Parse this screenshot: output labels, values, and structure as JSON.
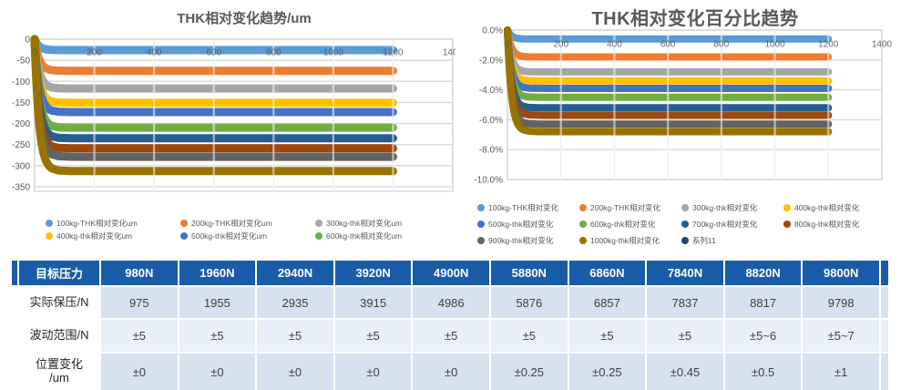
{
  "colors": {
    "title_text": "#595959",
    "tick_text": "#595959",
    "gridline": "#D9D9D9",
    "table_header_bg": "#1A5CA8",
    "table_header_text": "#FFFFFF",
    "table_row_bg_odd": "#D6E2F0",
    "table_row_bg_even": "#EAF0F8"
  },
  "chart_data": [
    {
      "type": "scatter",
      "title": "THK相对变化趋势/um",
      "xlabel": "",
      "ylabel": "",
      "xlim": [
        0,
        1400
      ],
      "ylim": [
        -361,
        0
      ],
      "x_ticks": [
        0,
        200,
        400,
        600,
        800,
        1000,
        1200,
        1400
      ],
      "x_tick_labels": [
        "0",
        "200",
        "400",
        "600",
        "800",
        "1000",
        "1200",
        "1400"
      ],
      "y_ticks": [
        0,
        -50,
        -100,
        -150,
        -200,
        -250,
        -300,
        -350
      ],
      "y_tick_labels": [
        "0",
        "-50",
        "-100",
        "-150",
        "-200",
        "-250",
        "-300",
        "-350"
      ],
      "grid": true,
      "legend_position": "bottom",
      "x_data_range": [
        0,
        1200
      ],
      "shape_note": "each series starts at 0 at x=0, drops rapidly within the first ~50 x-units, then stays constant to x=1200",
      "series": [
        {
          "label": "100kg-THK相对变化um",
          "color": "#5B9BD5",
          "start_value": 0,
          "steady_value": -26
        },
        {
          "label": "200kg-THK相对变化um",
          "color": "#ED7D31",
          "start_value": 0,
          "steady_value": -75
        },
        {
          "label": "300kg-thk相对变化um",
          "color": "#A5A5A5",
          "start_value": 0,
          "steady_value": -117
        },
        {
          "label": "400kg-thk相对变化um",
          "color": "#FFC000",
          "start_value": 0,
          "steady_value": -151
        },
        {
          "label": "500kg-thk相对变化um",
          "color": "#4472C4",
          "start_value": 0,
          "steady_value": -173
        },
        {
          "label": "600kg-thk相对变化um",
          "color": "#70AD47",
          "start_value": 0,
          "steady_value": -210
        },
        {
          "label": "",
          "color": "#255E91",
          "start_value": 0,
          "steady_value": -235
        },
        {
          "label": "",
          "color": "#9E480E",
          "start_value": 0,
          "steady_value": -259
        },
        {
          "label": "",
          "color": "#636363",
          "start_value": 0,
          "steady_value": -279
        },
        {
          "label": "",
          "color": "#997300",
          "start_value": 0,
          "steady_value": -313
        }
      ],
      "legend": [
        {
          "label": "100kg-THK相对变化um",
          "color": "#5B9BD5"
        },
        {
          "label": "200kg-THK相对变化um",
          "color": "#ED7D31"
        },
        {
          "label": "300kg-thk相对变化um",
          "color": "#A5A5A5"
        },
        {
          "label": "400kg-thk相对变化um",
          "color": "#FFC000"
        },
        {
          "label": "500kg-thk相对变化um",
          "color": "#4472C4"
        },
        {
          "label": "600kg-thk相对变化um",
          "color": "#70AD47"
        }
      ]
    },
    {
      "type": "scatter",
      "title": "THK相对变化百分比趋势",
      "xlabel": "",
      "ylabel": "",
      "xlim": [
        0,
        1400
      ],
      "ylim": [
        -10,
        0
      ],
      "x_ticks": [
        0,
        200,
        400,
        600,
        800,
        1000,
        1200,
        1400
      ],
      "x_tick_labels": [
        "0",
        "200",
        "400",
        "600",
        "800",
        "1000",
        "1200",
        "1400"
      ],
      "y_ticks": [
        0,
        -2,
        -4,
        -6,
        -8,
        -10
      ],
      "y_tick_labels": [
        "0.0%",
        "-2.0%",
        "-4.0%",
        "-6.0%",
        "-8.0%",
        "-10.0%"
      ],
      "grid": true,
      "legend_position": "bottom",
      "x_data_range": [
        0,
        1200
      ],
      "shape_note": "each series starts at 0% at x=0, drops rapidly within the first ~50 x-units, then stays constant to x=1200",
      "series": [
        {
          "label": "100kg-THK相对变化",
          "color": "#5B9BD5",
          "start_value": 0,
          "steady_value": -0.6
        },
        {
          "label": "200kg-THK相对变化",
          "color": "#ED7D31",
          "start_value": 0,
          "steady_value": -1.8
        },
        {
          "label": "300kg-thk相对变化",
          "color": "#A5A5A5",
          "start_value": 0,
          "steady_value": -2.8
        },
        {
          "label": "400kg-thk相对变化",
          "color": "#FFC000",
          "start_value": 0,
          "steady_value": -3.4
        },
        {
          "label": "500kg-thk相对变化",
          "color": "#4472C4",
          "start_value": 0,
          "steady_value": -3.9
        },
        {
          "label": "600kg-thk相对变化",
          "color": "#70AD47",
          "start_value": 0,
          "steady_value": -4.5
        },
        {
          "label": "700kg-thk相对变化",
          "color": "#255E91",
          "start_value": 0,
          "steady_value": -5.2
        },
        {
          "label": "800kg-thk相对变化",
          "color": "#9E480E",
          "start_value": 0,
          "steady_value": -5.7
        },
        {
          "label": "900kg-thk相对变化",
          "color": "#636363",
          "start_value": 0,
          "steady_value": -6.3
        },
        {
          "label": "1000kg-thk相对变化",
          "color": "#997300",
          "start_value": 0,
          "steady_value": -6.8
        }
      ],
      "legend": [
        {
          "label": "100kg-THK相对变化",
          "color": "#5B9BD5"
        },
        {
          "label": "200kg-THK相对变化",
          "color": "#ED7D31"
        },
        {
          "label": "300kg-thk相对变化",
          "color": "#A5A5A5"
        },
        {
          "label": "400kg-thk相对变化",
          "color": "#FFC000"
        },
        {
          "label": "500kg-thk相对变化",
          "color": "#4472C4"
        },
        {
          "label": "600kg-thk相对变化",
          "color": "#70AD47"
        },
        {
          "label": "700kg-thk相对变化",
          "color": "#255E91"
        },
        {
          "label": "800kg-thk相对变化",
          "color": "#9E480E"
        },
        {
          "label": "900kg-thk相对变化",
          "color": "#636363"
        },
        {
          "label": "1000kg-thk相对变化",
          "color": "#997300"
        },
        {
          "label": "系列11",
          "color": "#264478"
        }
      ]
    }
  ],
  "table": {
    "header": [
      "目标压力",
      "980N",
      "1960N",
      "2940N",
      "3920N",
      "4900N",
      "5880N",
      "6860N",
      "7840N",
      "8820N",
      "9800N"
    ],
    "rows": [
      {
        "label": "实际保压/N",
        "values": [
          "975",
          "1955",
          "2935",
          "3915",
          "4986",
          "5876",
          "6857",
          "7837",
          "8817",
          "9798"
        ]
      },
      {
        "label": "波动范围/N",
        "values": [
          "±5",
          "±5",
          "±5",
          "±5",
          "±5",
          "±5",
          "±5",
          "±5",
          "±5~6",
          "±5~7"
        ]
      },
      {
        "label": "位置变化\n/um",
        "values": [
          "±0",
          "±0",
          "±0",
          "±0",
          "±0",
          "±0.25",
          "±0.25",
          "±0.45",
          "±0.5",
          "±1"
        ]
      }
    ]
  }
}
